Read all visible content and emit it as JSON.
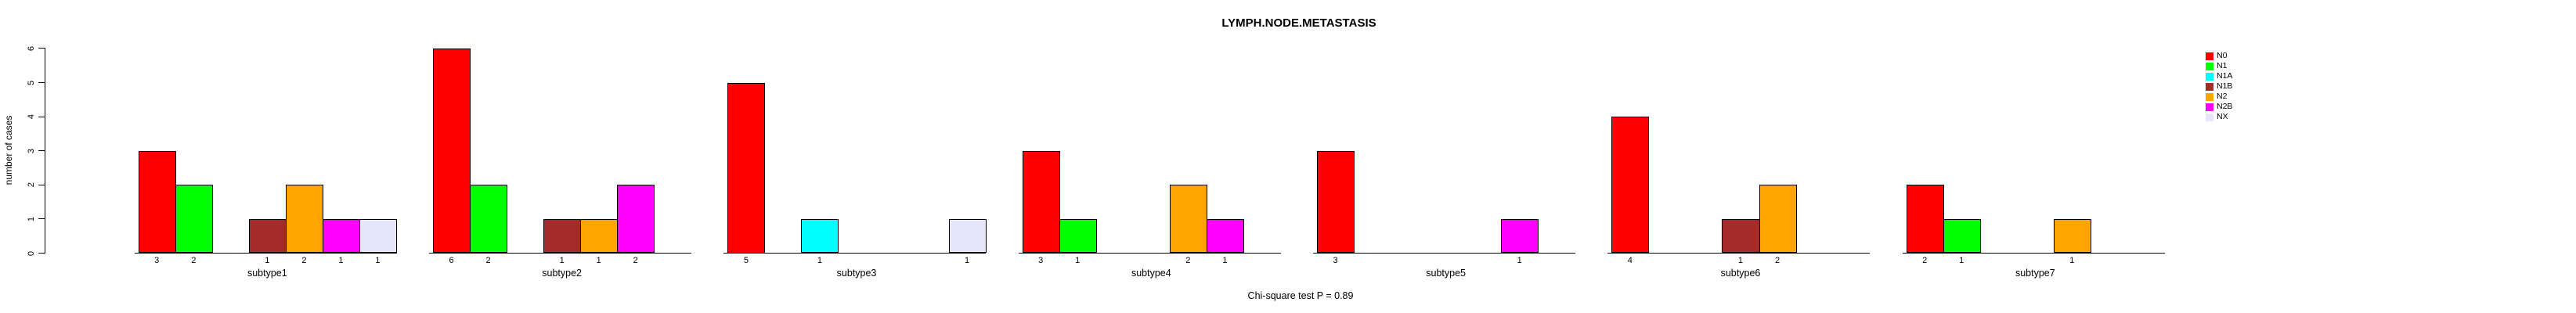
{
  "chart_data": {
    "type": "bar",
    "title": "LYMPH.NODE.METASTASIS",
    "ylabel": "number of cases",
    "annotation": "Chi-square test P = 0.89",
    "ylim": [
      0,
      6
    ],
    "yticks": [
      0,
      1,
      2,
      3,
      4,
      5,
      6
    ],
    "grid": false,
    "legend_position": "right",
    "bar_value_labels": true,
    "categories": [
      "subtype1",
      "subtype2",
      "subtype3",
      "subtype4",
      "subtype5",
      "subtype6",
      "subtype7"
    ],
    "series": [
      {
        "name": "N0",
        "color": "#FF0000",
        "values": [
          3,
          6,
          5,
          3,
          3,
          4,
          2
        ]
      },
      {
        "name": "N1",
        "color": "#00FF00",
        "values": [
          2,
          2,
          0,
          1,
          0,
          0,
          1
        ]
      },
      {
        "name": "N1A",
        "color": "#00FFFF",
        "values": [
          0,
          0,
          1,
          0,
          0,
          0,
          0
        ]
      },
      {
        "name": "N1B",
        "color": "#A52A2A",
        "values": [
          1,
          1,
          0,
          0,
          0,
          1,
          0
        ]
      },
      {
        "name": "N2",
        "color": "#FFA500",
        "values": [
          2,
          1,
          0,
          2,
          0,
          2,
          1
        ]
      },
      {
        "name": "N2B",
        "color": "#FF00FF",
        "values": [
          1,
          2,
          0,
          1,
          1,
          0,
          0
        ]
      },
      {
        "name": "NX",
        "color": "#E6E6FA",
        "values": [
          1,
          0,
          1,
          0,
          0,
          0,
          0
        ]
      }
    ]
  }
}
